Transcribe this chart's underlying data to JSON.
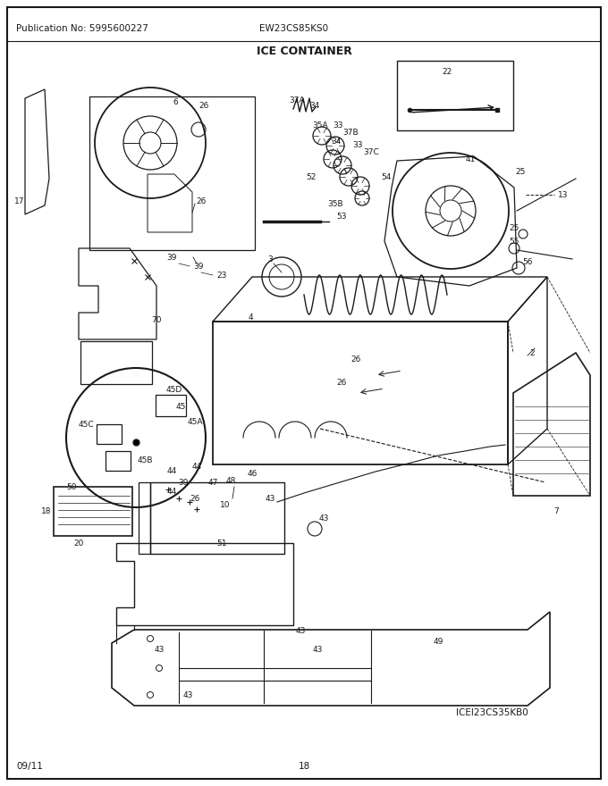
{
  "publication": "Publication No: 5995600227",
  "model": "EW23CS85KS0",
  "title": "ICE CONTAINER",
  "diagram_code": "ICEI23CS35KB0",
  "date": "09/11",
  "page": "18",
  "bg_color": "#ffffff",
  "border_color": "#000000",
  "text_color": "#000000",
  "title_fontsize": 9,
  "header_fontsize": 7.5,
  "footer_fontsize": 7.5,
  "label_fontsize": 6.5
}
